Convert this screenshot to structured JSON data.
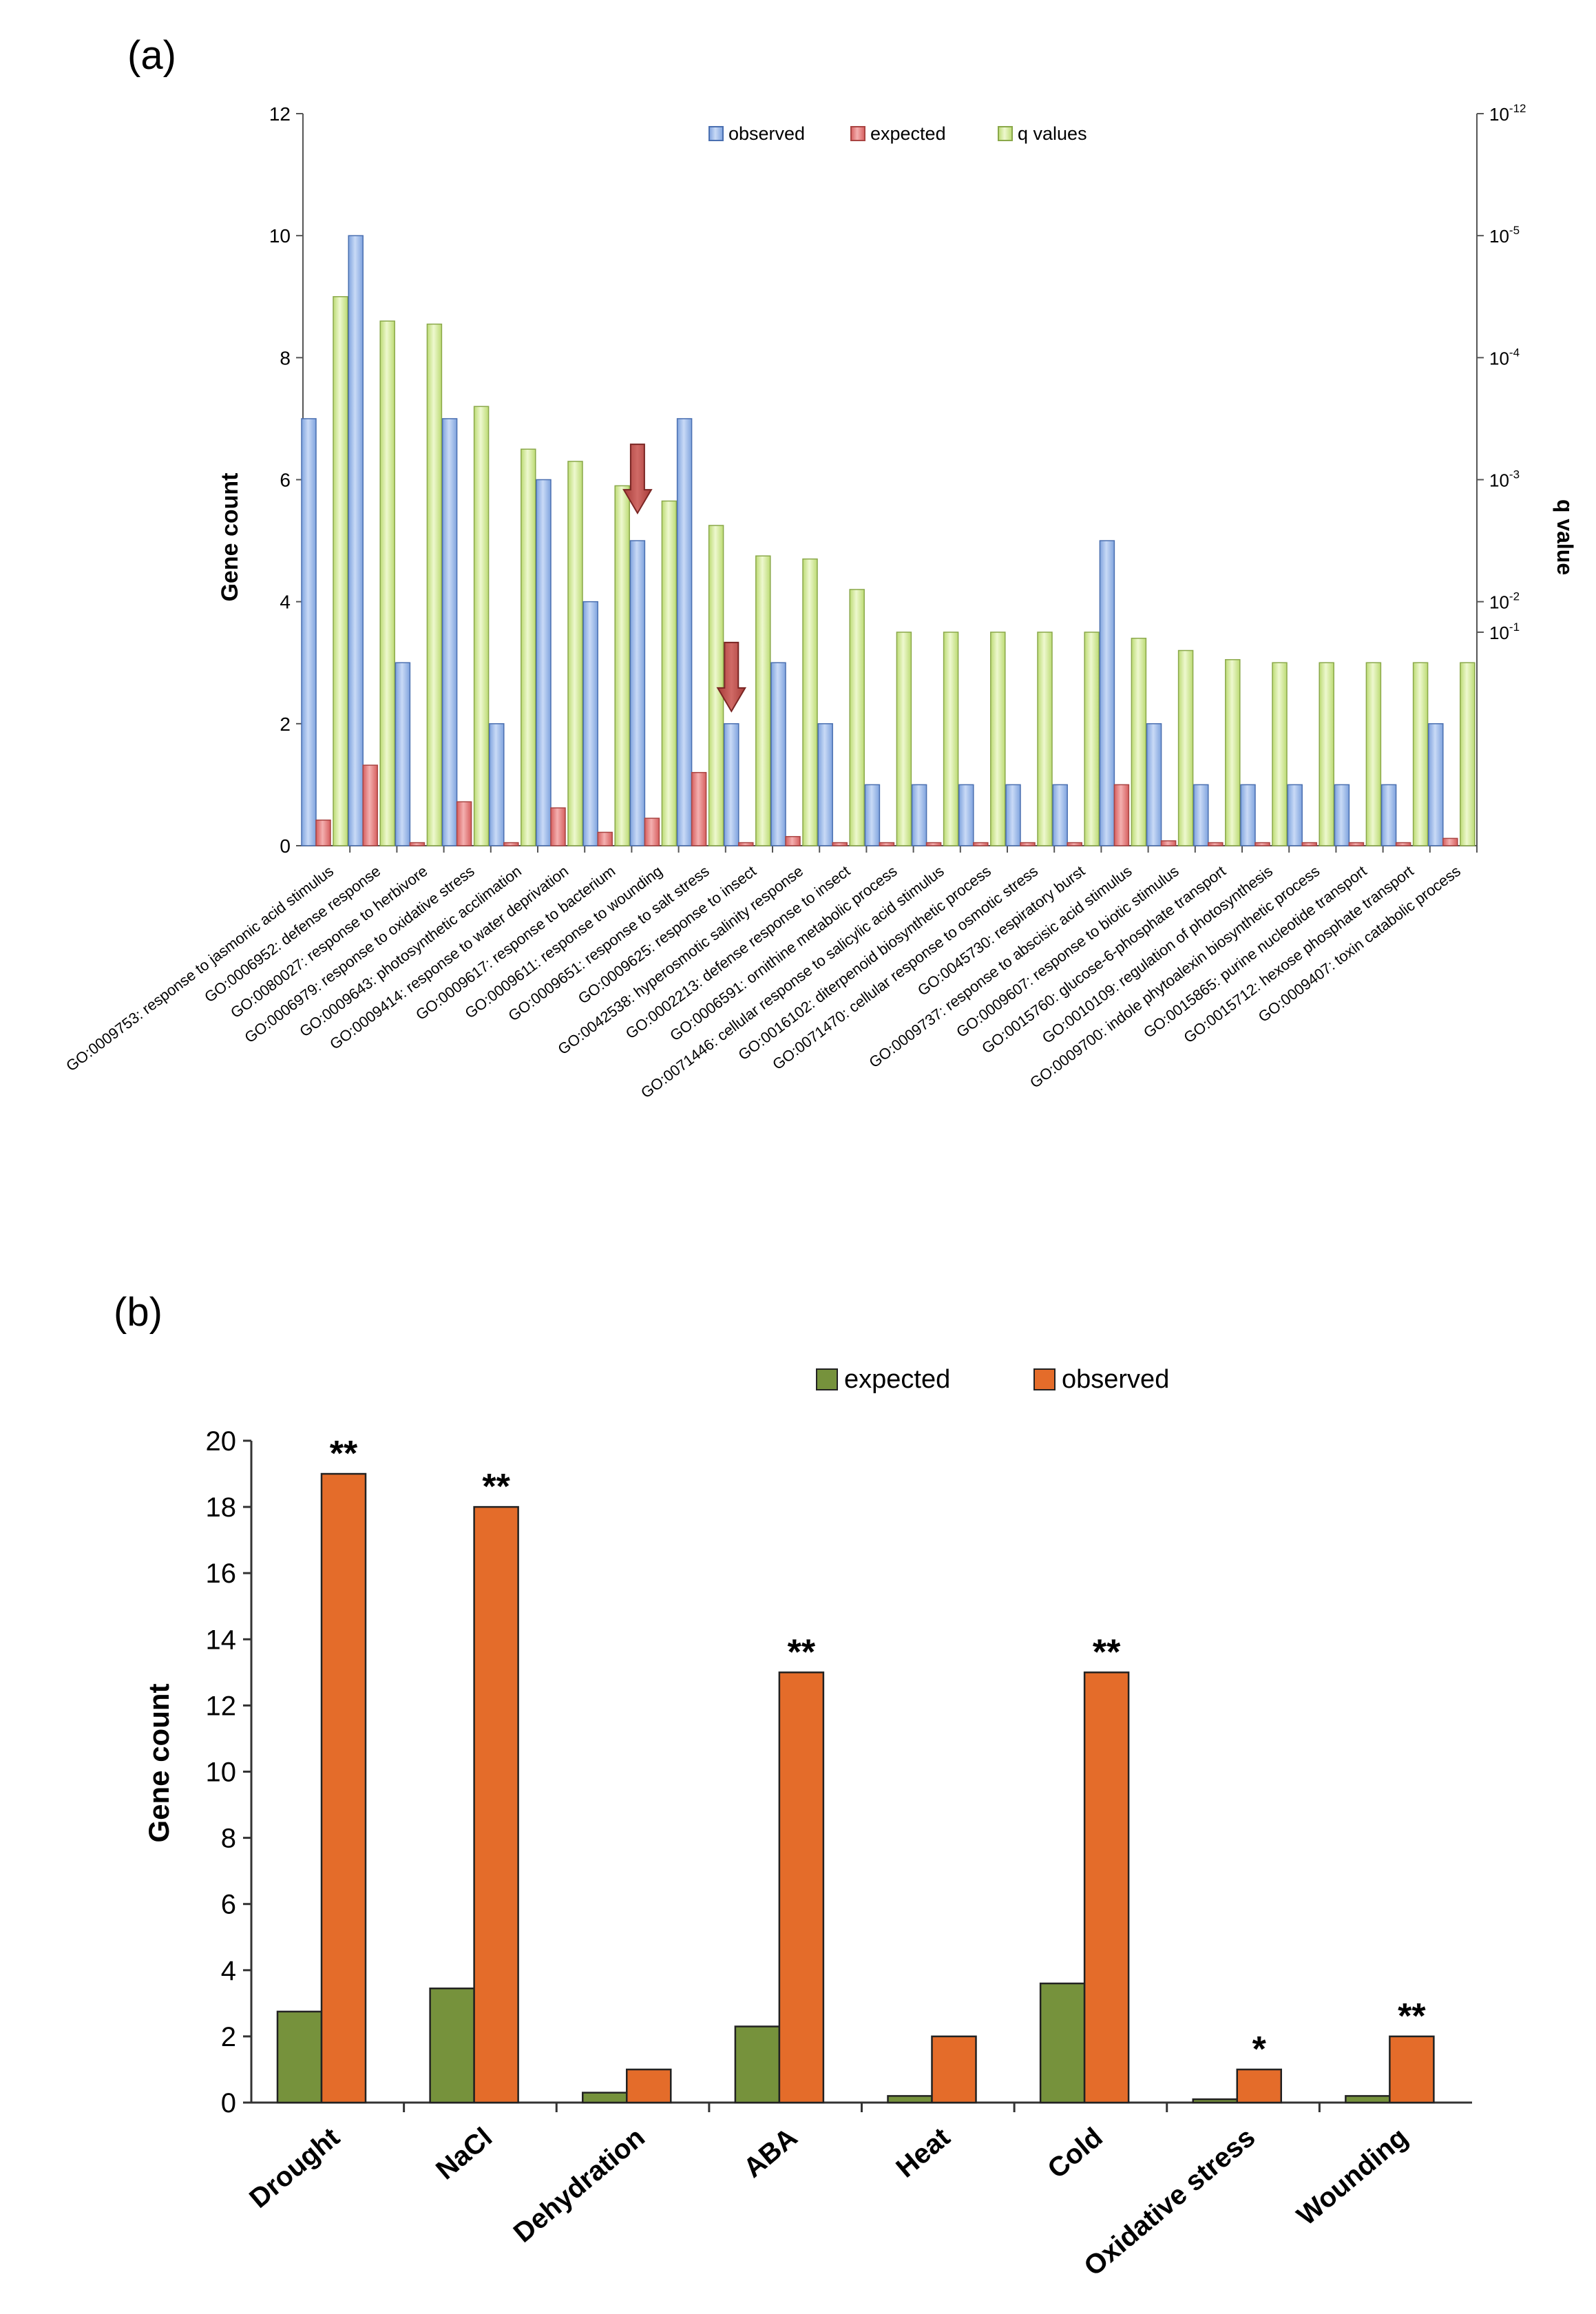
{
  "chart_data": [
    {
      "panel_label": "(a)",
      "type": "bar",
      "ylabel": "Gene count",
      "y2label": "q value",
      "ylim": [
        0,
        12
      ],
      "yticks": [
        "0",
        "2",
        "4",
        "6",
        "8",
        "10",
        "12"
      ],
      "y2ticks": [
        {
          "base": "10",
          "exp": "-1",
          "value": 3.5
        },
        {
          "base": "10",
          "exp": "-2",
          "value": 4.0
        },
        {
          "base": "10",
          "exp": "-3",
          "value": 6.0
        },
        {
          "base": "10",
          "exp": "-4",
          "value": 8.0
        },
        {
          "base": "10",
          "exp": "-5",
          "value": 10.0
        },
        {
          "base": "10",
          "exp": "-12",
          "value": 12.0
        }
      ],
      "legend": [
        "observed",
        "expected",
        "q values"
      ],
      "colors": {
        "observed": "#9db8e8",
        "expected": "#e98282",
        "q values": "#d6eea0",
        "arrow": "#c0504d"
      },
      "arrows_at": [
        7,
        9
      ],
      "categories": [
        "GO:0009753: response to jasmonic acid stimulus",
        "GO:0006952: defense response",
        "GO:0080027: response to herbivore",
        "GO:0006979: response to oxidative stress",
        "GO:0009643: photosynthetic acclimation",
        "GO:0009414: response to water deprivation",
        "GO:0009617: response to bacterium",
        "GO:0009611: response to wounding",
        "GO:0009651: response to salt stress",
        "GO:0009625: response to insect",
        "GO:0042538: hyperosmotic salinity response",
        "GO:0002213: defense response to insect",
        "GO:0006591: ornithine metabolic process",
        "GO:0071446: cellular response to salicylic acid stimulus",
        "GO:0016102: diterpenoid biosynthetic process",
        "GO:0071470: cellular response to osmotic stress",
        "GO:0045730: respiratory burst",
        "GO:0009737: response to abscisic acid stimulus",
        "GO:0009607: response to biotic stimulus",
        "GO:0015760: glucose-6-phosphate transport",
        "GO:0010109: regulation of photosynthesis",
        "GO:0009700: indole phytoalexin biosynthetic process",
        "GO:0015865: purine nucleotide transport",
        "GO:0015712: hexose phosphate transport",
        "GO:0009407: toxin catabolic process"
      ],
      "series": [
        {
          "name": "observed",
          "values": [
            7,
            10,
            3,
            7,
            2,
            6,
            4,
            5,
            7,
            2,
            3,
            2,
            1,
            1,
            1,
            1,
            1,
            5,
            2,
            1,
            1,
            1,
            1,
            1,
            2
          ]
        },
        {
          "name": "expected",
          "values": [
            0.42,
            1.32,
            0.05,
            0.72,
            0.05,
            0.62,
            0.22,
            0.45,
            1.2,
            0.05,
            0.15,
            0.05,
            0.05,
            0.05,
            0.05,
            0.05,
            0.05,
            1.0,
            0.08,
            0.05,
            0.05,
            0.05,
            0.05,
            0.05,
            0.12
          ]
        },
        {
          "name": "q values",
          "values": [
            9.0,
            8.6,
            8.55,
            7.2,
            6.5,
            6.3,
            5.9,
            5.65,
            5.25,
            4.75,
            4.7,
            4.2,
            3.5,
            3.5,
            3.5,
            3.5,
            3.5,
            3.4,
            3.2,
            3.05,
            3.0,
            3.0,
            3.0,
            3.0,
            3.0
          ]
        }
      ]
    },
    {
      "panel_label": "(b)",
      "type": "bar",
      "ylabel": "Gene count",
      "ylim": [
        0,
        20
      ],
      "yticks": [
        "0",
        "2",
        "4",
        "6",
        "8",
        "10",
        "12",
        "14",
        "16",
        "18",
        "20"
      ],
      "legend": [
        "expected",
        "observed"
      ],
      "colors": {
        "expected": "#76923c",
        "observed": "#e46c2a"
      },
      "categories": [
        "Drought",
        "NaCl",
        "Dehydration",
        "ABA",
        "Heat",
        "Cold",
        "Oxidative stress",
        "Wounding"
      ],
      "series": [
        {
          "name": "expected",
          "values": [
            2.75,
            3.45,
            0.3,
            2.3,
            0.2,
            3.6,
            0.1,
            0.2
          ]
        },
        {
          "name": "observed",
          "values": [
            19,
            18,
            1,
            13,
            2,
            13,
            1,
            2
          ]
        }
      ],
      "significance": [
        "**",
        "**",
        "",
        "**",
        "",
        "**",
        "*",
        "**"
      ]
    }
  ]
}
